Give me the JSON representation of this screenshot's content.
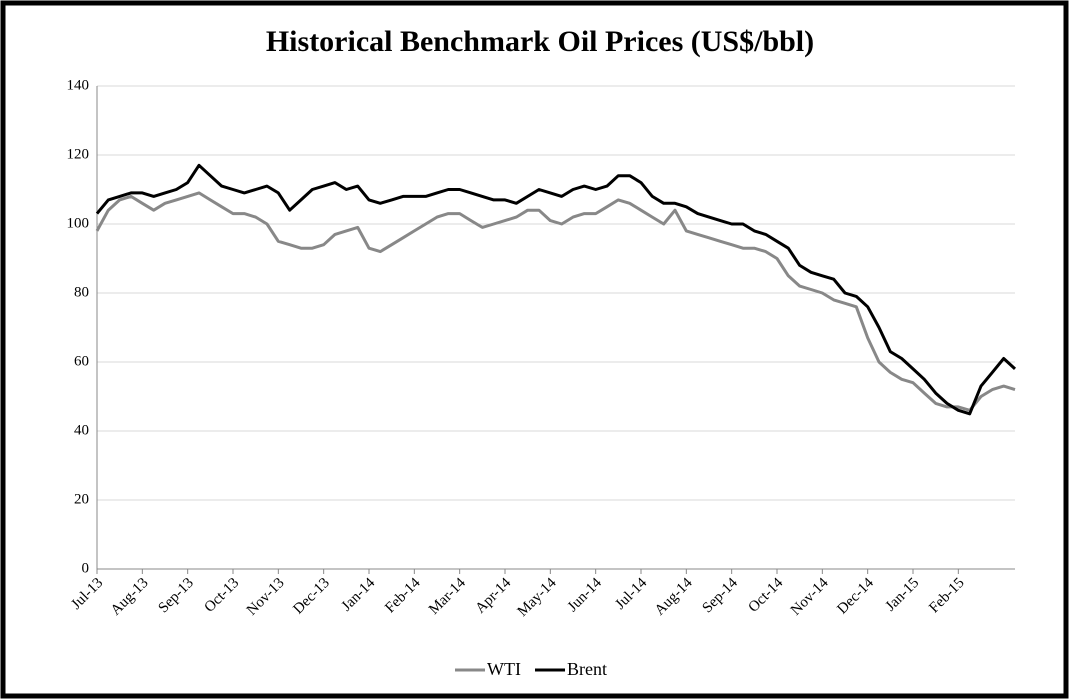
{
  "chart_data": {
    "type": "line",
    "title": "Historical Benchmark Oil Prices (US$/bbl)",
    "categories": [
      "Jul-13",
      null,
      null,
      null,
      "Aug-13",
      null,
      null,
      null,
      "Sep-13",
      null,
      null,
      null,
      "Oct-13",
      null,
      null,
      null,
      "Nov-13",
      null,
      null,
      null,
      "Dec-13",
      null,
      null,
      null,
      "Jan-14",
      null,
      null,
      null,
      "Feb-14",
      null,
      null,
      null,
      "Mar-14",
      null,
      null,
      null,
      "Apr-14",
      null,
      null,
      null,
      "May-14",
      null,
      null,
      null,
      "Jun-14",
      null,
      null,
      null,
      "Jul-14",
      null,
      null,
      null,
      "Aug-14",
      null,
      null,
      null,
      "Sep-14",
      null,
      null,
      null,
      "Oct-14",
      null,
      null,
      null,
      "Nov-14",
      null,
      null,
      null,
      "Dec-14",
      null,
      null,
      null,
      "Jan-15",
      null,
      null,
      null,
      "Feb-15",
      null,
      null,
      null,
      null,
      null
    ],
    "series": [
      {
        "name": "WTI",
        "color": "#888888",
        "values": [
          98,
          104,
          107,
          108,
          106,
          104,
          106,
          107,
          108,
          109,
          107,
          105,
          103,
          103,
          102,
          100,
          95,
          94,
          93,
          93,
          94,
          97,
          98,
          99,
          93,
          92,
          94,
          96,
          98,
          100,
          102,
          103,
          103,
          101,
          99,
          100,
          101,
          102,
          104,
          104,
          101,
          100,
          102,
          103,
          103,
          105,
          107,
          106,
          104,
          102,
          100,
          104,
          98,
          97,
          96,
          95,
          94,
          93,
          93,
          92,
          90,
          85,
          82,
          81,
          80,
          78,
          77,
          76,
          67,
          60,
          57,
          55,
          54,
          51,
          48,
          47,
          47,
          46,
          50,
          52,
          53,
          52
        ]
      },
      {
        "name": "Brent",
        "color": "#000000",
        "values": [
          103,
          107,
          108,
          109,
          109,
          108,
          109,
          110,
          112,
          117,
          114,
          111,
          110,
          109,
          110,
          111,
          109,
          104,
          107,
          110,
          111,
          112,
          110,
          111,
          107,
          106,
          107,
          108,
          108,
          108,
          109,
          110,
          110,
          109,
          108,
          107,
          107,
          106,
          108,
          110,
          109,
          108,
          110,
          111,
          110,
          111,
          114,
          114,
          112,
          108,
          106,
          106,
          105,
          103,
          102,
          101,
          100,
          100,
          98,
          97,
          95,
          93,
          88,
          86,
          85,
          84,
          80,
          79,
          76,
          70,
          63,
          61,
          58,
          55,
          51,
          48,
          46,
          45,
          53,
          57,
          61,
          58
        ]
      }
    ],
    "ylim": [
      0,
      140
    ],
    "yticks": [
      0,
      20,
      40,
      60,
      80,
      100,
      120,
      140
    ],
    "grid": true,
    "legend": "bottom"
  }
}
